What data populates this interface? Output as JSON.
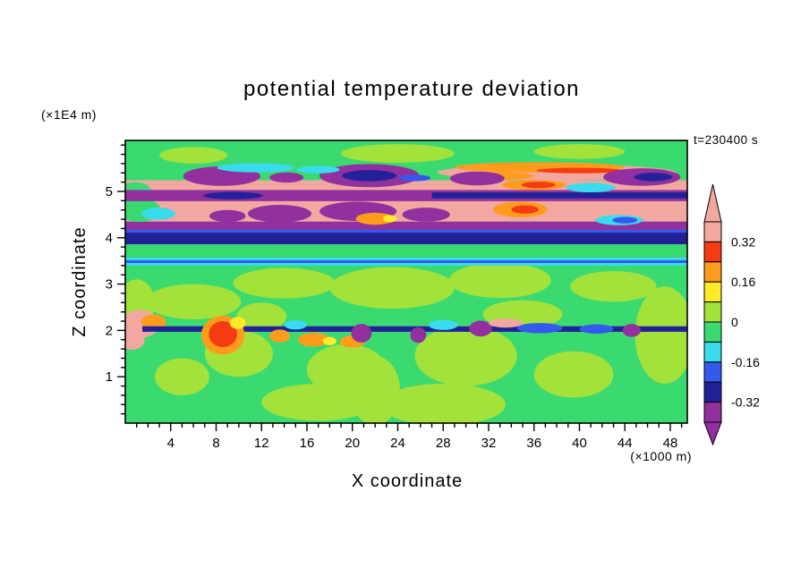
{
  "chart_data": {
    "type": "heatmap",
    "subtype": "filled-contour",
    "title": "potential temperature deviation",
    "timestamp": "t=230400 s",
    "xlabel": "X coordinate",
    "x_unit": "(×1000 m)",
    "ylabel": "Z coordinate",
    "y_unit": "(×1E4 m)",
    "xlim": [
      0,
      49.5
    ],
    "ylim": [
      0,
      6.1
    ],
    "x_major_ticks": [
      4,
      8,
      12,
      16,
      20,
      24,
      28,
      32,
      36,
      40,
      44,
      48
    ],
    "x_minor_step": 1,
    "y_major_ticks": [
      1,
      2,
      3,
      4,
      5
    ],
    "y_minor_step": 0.2,
    "grid": false,
    "legend_position": "right-colorbar",
    "palette": {
      "salmon": "#f2a8a0",
      "red": "#f53b13",
      "orange": "#ff9c1c",
      "yellow": "#ffeb28",
      "ygreen": "#a2e23a",
      "green": "#3bda71",
      "cyan": "#38dcec",
      "blue": "#3359ee",
      "navy": "#232199",
      "purple": "#91309e"
    },
    "colorbar": {
      "max": 0.4,
      "step": 0.08,
      "top_arrow": "salmon",
      "bottom_arrow": "purple",
      "segments": [
        {
          "key": "salmon",
          "from": 0.32,
          "to": 0.4
        },
        {
          "key": "red",
          "from": 0.24,
          "to": 0.32
        },
        {
          "key": "orange",
          "from": 0.16,
          "to": 0.24
        },
        {
          "key": "yellow",
          "from": 0.08,
          "to": 0.16
        },
        {
          "key": "ygreen",
          "from": 0.0,
          "to": 0.08
        },
        {
          "key": "green",
          "from": -0.08,
          "to": 0.0
        },
        {
          "key": "cyan",
          "from": -0.16,
          "to": -0.08
        },
        {
          "key": "blue",
          "from": -0.24,
          "to": -0.16
        },
        {
          "key": "navy",
          "from": -0.32,
          "to": -0.24
        },
        {
          "key": "purple",
          "from": -0.4,
          "to": -0.32
        }
      ],
      "labels": [
        {
          "value": 0.32,
          "label": "0.32"
        },
        {
          "value": 0.16,
          "label": "0.16"
        },
        {
          "value": 0,
          "label": "0"
        },
        {
          "value": -0.16,
          "label": "-0.16"
        },
        {
          "value": -0.32,
          "label": "-0.32"
        }
      ]
    },
    "field": {
      "background_level": "green",
      "regions": [
        {
          "shape": "band",
          "x0": 0,
          "x1": 49.5,
          "z0": 0,
          "z1": 6.1,
          "level": "green"
        },
        {
          "shape": "ellipse",
          "x": 6,
          "z": 2.62,
          "rx": 4.2,
          "rz": 0.38,
          "level": "ygreen"
        },
        {
          "shape": "ellipse",
          "x": 14,
          "z": 3.02,
          "rx": 4.5,
          "rz": 0.33,
          "level": "ygreen"
        },
        {
          "shape": "ellipse",
          "x": 23.5,
          "z": 2.92,
          "rx": 5.5,
          "rz": 0.45,
          "level": "ygreen"
        },
        {
          "shape": "ellipse",
          "x": 33,
          "z": 3.08,
          "rx": 4.5,
          "rz": 0.38,
          "level": "ygreen"
        },
        {
          "shape": "ellipse",
          "x": 43,
          "z": 2.95,
          "rx": 3.8,
          "rz": 0.33,
          "level": "ygreen"
        },
        {
          "shape": "ellipse",
          "x": 10,
          "z": 1.5,
          "rx": 3,
          "rz": 0.5,
          "level": "ygreen"
        },
        {
          "shape": "ellipse",
          "x": 19.5,
          "z": 1.15,
          "rx": 3.5,
          "rz": 0.55,
          "level": "ygreen"
        },
        {
          "shape": "ellipse",
          "x": 30,
          "z": 1.45,
          "rx": 4.5,
          "rz": 0.65,
          "level": "ygreen"
        },
        {
          "shape": "ellipse",
          "x": 39.5,
          "z": 1.05,
          "rx": 3.5,
          "rz": 0.5,
          "level": "ygreen"
        },
        {
          "shape": "ellipse",
          "x": 47.5,
          "z": 1.9,
          "rx": 2.6,
          "rz": 1.05,
          "level": "ygreen"
        },
        {
          "shape": "ellipse",
          "x": 17,
          "z": 0.45,
          "rx": 5,
          "rz": 0.4,
          "level": "ygreen"
        },
        {
          "shape": "ellipse",
          "x": 28,
          "z": 0.4,
          "rx": 5.5,
          "rz": 0.45,
          "level": "ygreen"
        },
        {
          "shape": "ellipse",
          "x": 5,
          "z": 1.0,
          "rx": 2.4,
          "rz": 0.4,
          "level": "ygreen"
        },
        {
          "shape": "ellipse",
          "x": 22,
          "z": 0.7,
          "rx": 2.2,
          "rz": 0.75,
          "level": "ygreen"
        },
        {
          "shape": "ellipse",
          "x": 35,
          "z": 2.35,
          "rx": 3.5,
          "rz": 0.3,
          "level": "ygreen"
        },
        {
          "shape": "ellipse",
          "x": 12,
          "z": 2.3,
          "rx": 2.2,
          "rz": 0.3,
          "level": "ygreen"
        },
        {
          "shape": "ellipse",
          "x": 1,
          "z": 2.6,
          "rx": 1.6,
          "rz": 0.5,
          "level": "ygreen"
        },
        {
          "shape": "ellipse",
          "x": 1.3,
          "z": 2.14,
          "rx": 1.7,
          "rz": 0.3,
          "level": "salmon"
        },
        {
          "shape": "ellipse",
          "x": 0.6,
          "z": 1.8,
          "rx": 1.1,
          "rz": 0.22,
          "level": "salmon"
        },
        {
          "shape": "ellipse",
          "x": 2.5,
          "z": 2.18,
          "rx": 1.1,
          "rz": 0.16,
          "level": "orange"
        },
        {
          "shape": "band",
          "x0": 1.5,
          "x1": 49.5,
          "z0": 1.97,
          "z1": 2.09,
          "level": "navy"
        },
        {
          "shape": "ellipse",
          "x": 8.6,
          "z": 1.9,
          "rx": 1.9,
          "rz": 0.42,
          "level": "orange"
        },
        {
          "shape": "ellipse",
          "x": 8.6,
          "z": 1.92,
          "rx": 1.25,
          "rz": 0.28,
          "level": "red"
        },
        {
          "shape": "ellipse",
          "x": 9.9,
          "z": 2.16,
          "rx": 0.7,
          "rz": 0.13,
          "level": "yellow"
        },
        {
          "shape": "ellipse",
          "x": 13.6,
          "z": 1.88,
          "rx": 0.9,
          "rz": 0.14,
          "level": "orange"
        },
        {
          "shape": "ellipse",
          "x": 16.6,
          "z": 1.8,
          "rx": 1.4,
          "rz": 0.15,
          "level": "orange"
        },
        {
          "shape": "ellipse",
          "x": 18,
          "z": 1.77,
          "rx": 0.6,
          "rz": 0.09,
          "level": "yellow"
        },
        {
          "shape": "ellipse",
          "x": 20,
          "z": 1.76,
          "rx": 1.1,
          "rz": 0.13,
          "level": "orange"
        },
        {
          "shape": "ellipse",
          "x": 20.8,
          "z": 1.94,
          "rx": 0.9,
          "rz": 0.2,
          "level": "purple"
        },
        {
          "shape": "ellipse",
          "x": 25.8,
          "z": 1.9,
          "rx": 0.7,
          "rz": 0.17,
          "level": "purple"
        },
        {
          "shape": "ellipse",
          "x": 31.3,
          "z": 2.04,
          "rx": 1.0,
          "rz": 0.17,
          "level": "purple"
        },
        {
          "shape": "ellipse",
          "x": 28,
          "z": 2.12,
          "rx": 1.3,
          "rz": 0.11,
          "level": "cyan"
        },
        {
          "shape": "ellipse",
          "x": 15,
          "z": 2.12,
          "rx": 1,
          "rz": 0.1,
          "level": "cyan"
        },
        {
          "shape": "ellipse",
          "x": 36.5,
          "z": 2.05,
          "rx": 2,
          "rz": 0.11,
          "level": "blue"
        },
        {
          "shape": "ellipse",
          "x": 41.5,
          "z": 2.03,
          "rx": 1.5,
          "rz": 0.1,
          "level": "blue"
        },
        {
          "shape": "ellipse",
          "x": 44.6,
          "z": 2.0,
          "rx": 0.8,
          "rz": 0.14,
          "level": "purple"
        },
        {
          "shape": "ellipse",
          "x": 33.5,
          "z": 2.16,
          "rx": 1.5,
          "rz": 0.1,
          "level": "salmon"
        },
        {
          "shape": "band",
          "x0": 0,
          "x1": 49.5,
          "z0": 3.4,
          "z1": 3.57,
          "level": "cyan"
        },
        {
          "shape": "band",
          "x0": 0,
          "x1": 49.5,
          "z0": 3.455,
          "z1": 3.515,
          "level": "blue"
        },
        {
          "shape": "band",
          "x0": 0,
          "x1": 49.5,
          "z0": 3.86,
          "z1": 4.13,
          "level": "navy"
        },
        {
          "shape": "band",
          "x0": 0,
          "x1": 49.5,
          "z0": 4.11,
          "z1": 4.17,
          "level": "blue"
        },
        {
          "shape": "band",
          "x0": 0,
          "x1": 49.5,
          "z0": 4.17,
          "z1": 4.35,
          "level": "purple"
        },
        {
          "shape": "band",
          "x0": 0,
          "x1": 49.5,
          "z0": 4.35,
          "z1": 5.24,
          "level": "salmon"
        },
        {
          "shape": "ellipse",
          "x": 1.2,
          "z": 4.6,
          "rx": 1.9,
          "rz": 0.26,
          "level": "green"
        },
        {
          "shape": "ellipse",
          "x": 2.9,
          "z": 4.52,
          "rx": 1.5,
          "rz": 0.13,
          "level": "cyan"
        },
        {
          "shape": "ellipse",
          "x": 0.9,
          "z": 5.0,
          "rx": 1.4,
          "rz": 0.2,
          "level": "green"
        },
        {
          "shape": "ellipse",
          "x": 1.8,
          "z": 4.95,
          "rx": 1.2,
          "rz": 0.1,
          "level": "cyan"
        },
        {
          "shape": "ellipse",
          "x": 9,
          "z": 4.47,
          "rx": 1.6,
          "rz": 0.13,
          "level": "purple"
        },
        {
          "shape": "ellipse",
          "x": 13.6,
          "z": 4.52,
          "rx": 2.8,
          "rz": 0.19,
          "level": "purple"
        },
        {
          "shape": "ellipse",
          "x": 20.5,
          "z": 4.57,
          "rx": 3.4,
          "rz": 0.21,
          "level": "purple"
        },
        {
          "shape": "ellipse",
          "x": 26.5,
          "z": 4.5,
          "rx": 2.1,
          "rz": 0.15,
          "level": "purple"
        },
        {
          "shape": "ellipse",
          "x": 22,
          "z": 4.41,
          "rx": 1.7,
          "rz": 0.13,
          "level": "orange"
        },
        {
          "shape": "ellipse",
          "x": 23.3,
          "z": 4.41,
          "rx": 0.6,
          "rz": 0.08,
          "level": "yellow"
        },
        {
          "shape": "ellipse",
          "x": 34.8,
          "z": 4.61,
          "rx": 2.4,
          "rz": 0.17,
          "level": "orange"
        },
        {
          "shape": "ellipse",
          "x": 35.2,
          "z": 4.61,
          "rx": 1.2,
          "rz": 0.09,
          "level": "red"
        },
        {
          "shape": "ellipse",
          "x": 43.5,
          "z": 4.38,
          "rx": 2.1,
          "rz": 0.11,
          "level": "cyan"
        },
        {
          "shape": "ellipse",
          "x": 44,
          "z": 4.38,
          "rx": 1.1,
          "rz": 0.07,
          "level": "blue"
        },
        {
          "shape": "band",
          "x0": 0,
          "x1": 49.5,
          "z0": 4.79,
          "z1": 5.03,
          "level": "purple"
        },
        {
          "shape": "band",
          "x0": 27,
          "x1": 49.5,
          "z0": 4.85,
          "z1": 4.98,
          "level": "navy"
        },
        {
          "shape": "ellipse",
          "x": 9.5,
          "z": 4.91,
          "rx": 2.6,
          "rz": 0.08,
          "level": "navy"
        },
        {
          "shape": "ellipse",
          "x": 36,
          "z": 5.14,
          "rx": 2.8,
          "rz": 0.11,
          "level": "orange"
        },
        {
          "shape": "ellipse",
          "x": 36.4,
          "z": 5.14,
          "rx": 1.5,
          "rz": 0.07,
          "level": "red"
        },
        {
          "shape": "ellipse",
          "x": 41,
          "z": 5.08,
          "rx": 2.2,
          "rz": 0.1,
          "level": "cyan"
        },
        {
          "shape": "ellipse",
          "x": 38,
          "z": 5.41,
          "rx": 10.5,
          "rz": 0.17,
          "level": "salmon"
        },
        {
          "shape": "ellipse",
          "x": 36.5,
          "z": 5.52,
          "rx": 7.5,
          "rz": 0.11,
          "level": "orange"
        },
        {
          "shape": "ellipse",
          "x": 32.5,
          "z": 5.33,
          "rx": 3.5,
          "rz": 0.09,
          "level": "orange"
        },
        {
          "shape": "ellipse",
          "x": 40,
          "z": 5.45,
          "rx": 3.8,
          "rz": 0.06,
          "level": "red"
        },
        {
          "shape": "ellipse",
          "x": 8.5,
          "z": 5.33,
          "rx": 3.4,
          "rz": 0.21,
          "level": "purple"
        },
        {
          "shape": "ellipse",
          "x": 14.2,
          "z": 5.3,
          "rx": 1.5,
          "rz": 0.11,
          "level": "purple"
        },
        {
          "shape": "ellipse",
          "x": 21.5,
          "z": 5.34,
          "rx": 4.4,
          "rz": 0.25,
          "level": "purple"
        },
        {
          "shape": "ellipse",
          "x": 21.5,
          "z": 5.34,
          "rx": 2.4,
          "rz": 0.12,
          "level": "navy"
        },
        {
          "shape": "ellipse",
          "x": 31,
          "z": 5.28,
          "rx": 2.4,
          "rz": 0.15,
          "level": "purple"
        },
        {
          "shape": "ellipse",
          "x": 45.5,
          "z": 5.31,
          "rx": 3.4,
          "rz": 0.19,
          "level": "purple"
        },
        {
          "shape": "ellipse",
          "x": 46.5,
          "z": 5.31,
          "rx": 1.7,
          "rz": 0.09,
          "level": "navy"
        },
        {
          "shape": "ellipse",
          "x": 11.5,
          "z": 5.51,
          "rx": 3.4,
          "rz": 0.1,
          "level": "cyan"
        },
        {
          "shape": "ellipse",
          "x": 17,
          "z": 5.47,
          "rx": 1.9,
          "rz": 0.08,
          "level": "cyan"
        },
        {
          "shape": "ellipse",
          "x": 25.5,
          "z": 5.29,
          "rx": 1.4,
          "rz": 0.07,
          "level": "blue"
        },
        {
          "shape": "ellipse",
          "x": 24,
          "z": 5.82,
          "rx": 5,
          "rz": 0.2,
          "level": "ygreen"
        },
        {
          "shape": "ellipse",
          "x": 40,
          "z": 5.86,
          "rx": 4,
          "rz": 0.16,
          "level": "ygreen"
        },
        {
          "shape": "ellipse",
          "x": 6,
          "z": 5.78,
          "rx": 3,
          "rz": 0.18,
          "level": "ygreen"
        }
      ]
    }
  }
}
